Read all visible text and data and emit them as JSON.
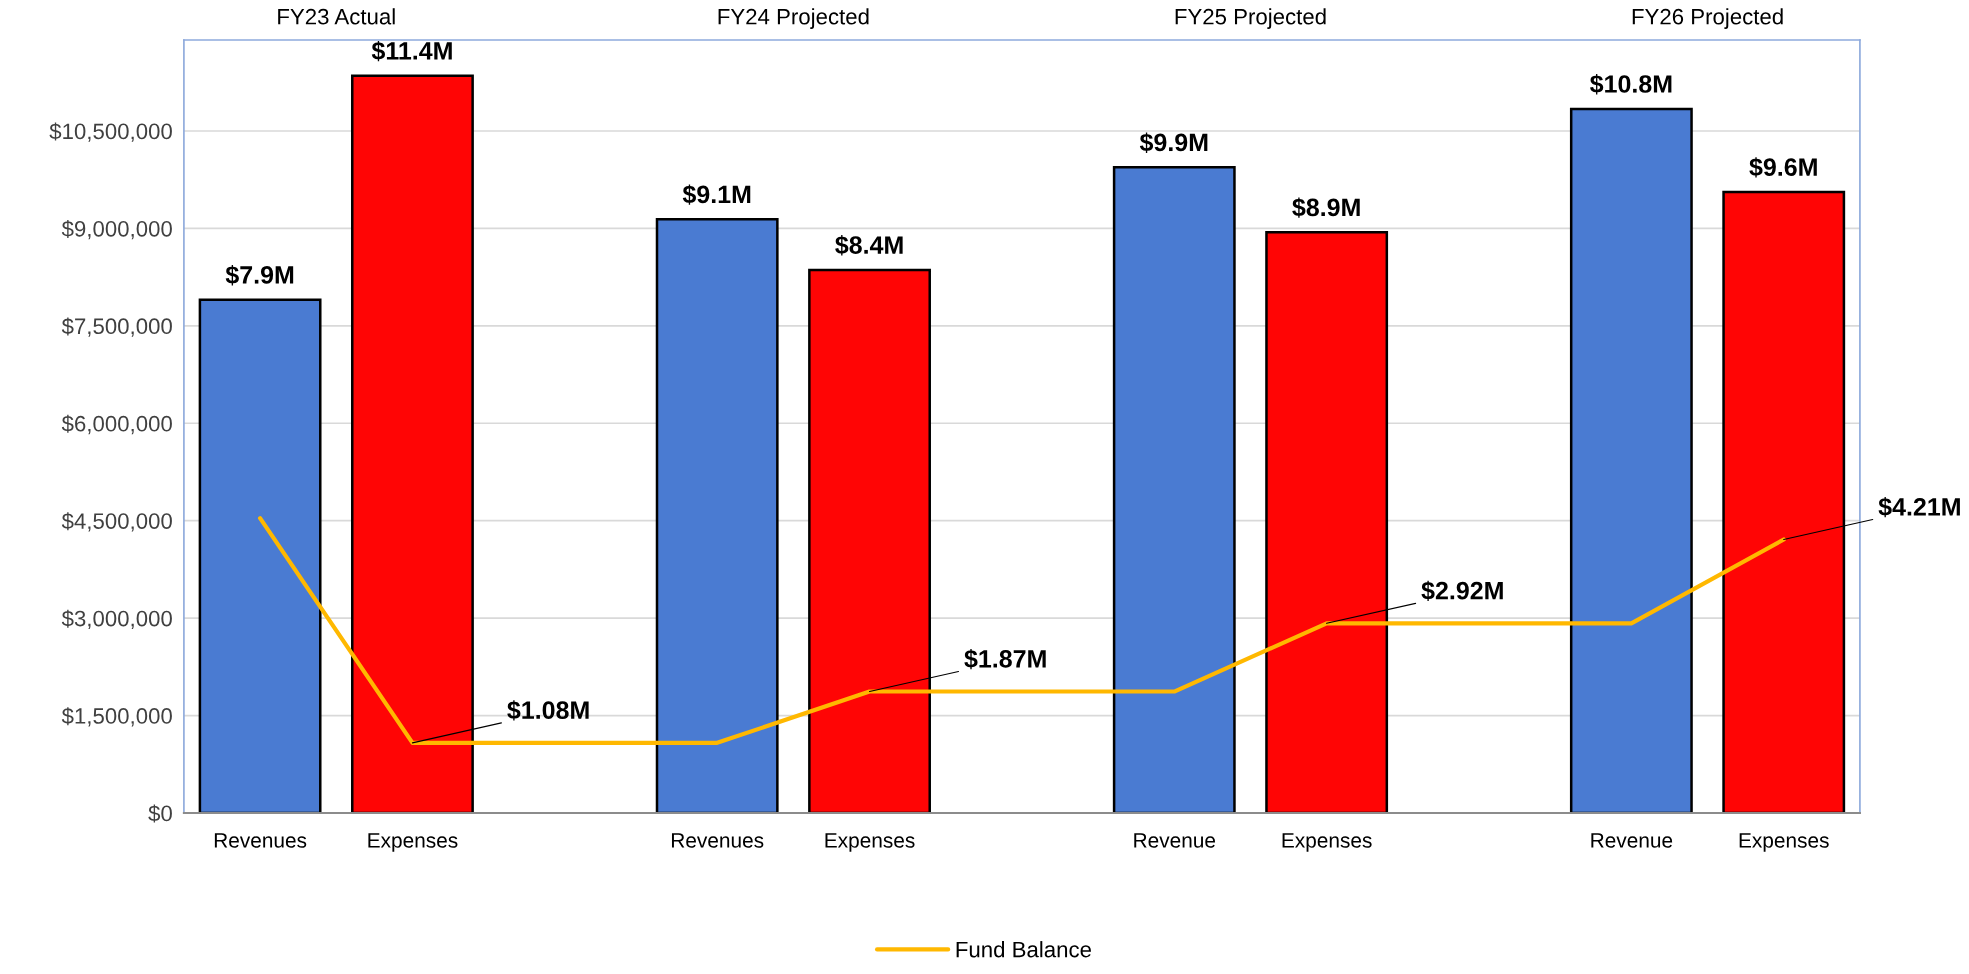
{
  "chart_data": {
    "type": "bar",
    "categories": [
      "Revenues",
      "Expenses",
      null,
      "Revenues",
      "Expenses",
      null,
      "Revenue",
      "Expenses",
      null,
      "Revenue",
      "Expenses"
    ],
    "series": [
      {
        "colors": [
          "#4a7bd2",
          "#ff0505",
          null,
          "#4a7bd2",
          "#ff0505",
          null,
          "#4a7bd2",
          "#ff0505",
          null,
          "#4a7bd2",
          "#ff0505"
        ],
        "values": [
          7900000,
          11350000,
          null,
          9140000,
          8360000,
          null,
          9940000,
          8940000,
          null,
          10840000,
          9560000
        ],
        "value_labels": [
          "$7.9M",
          "$11.4M",
          null,
          "$9.1M",
          "$8.4M",
          null,
          "$9.9M",
          "$8.9M",
          null,
          "$10.8M",
          "$9.6M"
        ]
      },
      {
        "type": "line",
        "name": "Fund Balance",
        "color": "#ffb800",
        "values": [
          4540000,
          1080000,
          1080000,
          1080000,
          1870000,
          1870000,
          1870000,
          2920000,
          2920000,
          2920000,
          4210000
        ],
        "value_labels": [
          null,
          "$1.08M",
          null,
          null,
          "$1.87M",
          null,
          null,
          "$2.92M",
          null,
          null,
          "$4.21M"
        ]
      }
    ],
    "ylim": [
      0,
      11900000
    ],
    "yticks": [
      {
        "value": 0,
        "label": "$0"
      },
      {
        "value": 1500000,
        "label": "$1,500,000"
      },
      {
        "value": 3000000,
        "label": "$3,000,000"
      },
      {
        "value": 4500000,
        "label": "$4,500,000"
      },
      {
        "value": 6000000,
        "label": "$6,000,000"
      },
      {
        "value": 7500000,
        "label": "$7,500,000"
      },
      {
        "value": 9000000,
        "label": "$9,000,000"
      },
      {
        "value": 10500000,
        "label": "$10,500,000"
      }
    ],
    "annotations": [
      "FY23 Actual",
      "FY24 Projected",
      "FY25 Projected",
      "FY26 Projected"
    ],
    "grid": "y",
    "legend": "bottom"
  }
}
